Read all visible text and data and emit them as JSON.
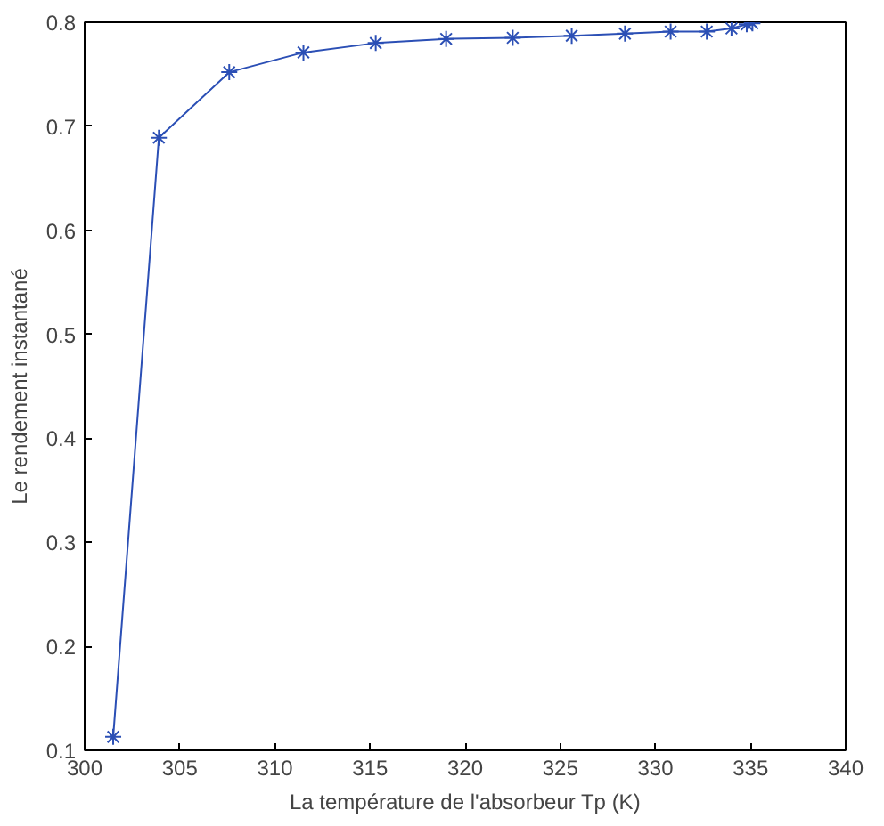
{
  "chart_data": {
    "type": "line",
    "xlabel": "La température de l'absorbeur Tp (K)",
    "ylabel": "Le rendement instantané",
    "x": [
      301.5,
      303.9,
      307.6,
      311.5,
      315.3,
      319.0,
      322.5,
      325.6,
      328.4,
      330.8,
      332.7,
      334.0,
      334.8,
      335.1
    ],
    "series": [
      {
        "color": "#2b4fb5",
        "values": [
          0.113,
          0.689,
          0.752,
          0.771,
          0.78,
          0.784,
          0.785,
          0.787,
          0.789,
          0.791,
          0.791,
          0.794,
          0.798,
          0.799
        ]
      }
    ],
    "xlim": [
      300,
      340
    ],
    "xticks": [
      300,
      305,
      310,
      315,
      320,
      325,
      330,
      335,
      340
    ],
    "ylim": [
      0.1,
      0.8
    ],
    "yticks": [
      0.1,
      0.2,
      0.3,
      0.4,
      0.5,
      0.6,
      0.7,
      0.8
    ],
    "marker": "cross",
    "line_style": "solid"
  }
}
